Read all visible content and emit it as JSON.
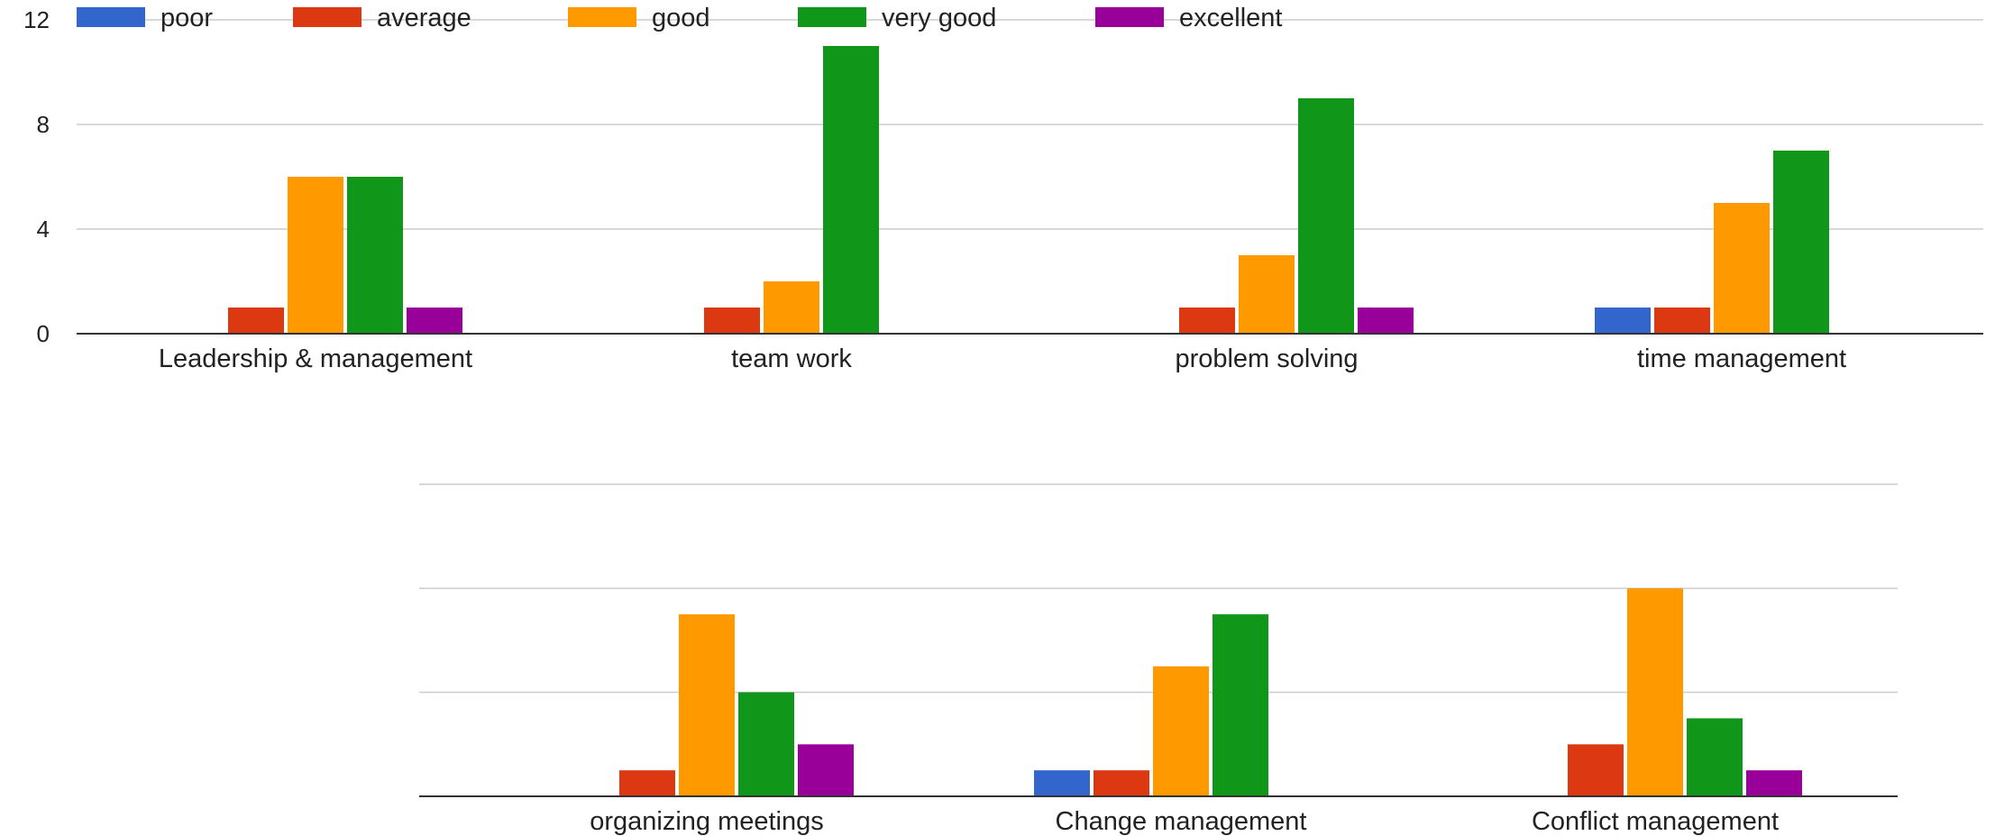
{
  "chart_data": [
    {
      "type": "bar",
      "categories": [
        "Leadership & management",
        "team work",
        "problem solving",
        "time management"
      ],
      "series": [
        {
          "name": "poor",
          "color": "#3366cc",
          "values": [
            0,
            0,
            0,
            1
          ]
        },
        {
          "name": "average",
          "color": "#dc3912",
          "values": [
            1,
            1,
            1,
            1
          ]
        },
        {
          "name": "good",
          "color": "#ff9900",
          "values": [
            6,
            2,
            3,
            5
          ]
        },
        {
          "name": "very good",
          "color": "#109618",
          "values": [
            6,
            11,
            9,
            7
          ]
        },
        {
          "name": "excellent",
          "color": "#990099",
          "values": [
            1,
            0,
            1,
            0
          ]
        }
      ],
      "yticks": [
        "0",
        "4",
        "8",
        "12"
      ],
      "ylim": [
        0,
        12
      ],
      "grid": true,
      "legend": "top-left"
    },
    {
      "type": "bar",
      "categories": [
        "organizing meetings",
        "Change management",
        "Conflict management"
      ],
      "series": [
        {
          "name": "poor",
          "color": "#3366cc",
          "values": [
            0,
            1,
            0
          ]
        },
        {
          "name": "average",
          "color": "#dc3912",
          "values": [
            1,
            1,
            2
          ]
        },
        {
          "name": "good",
          "color": "#ff9900",
          "values": [
            7,
            5,
            8
          ]
        },
        {
          "name": "very good",
          "color": "#109618",
          "values": [
            4,
            7,
            3
          ]
        },
        {
          "name": "excellent",
          "color": "#990099",
          "values": [
            2,
            0,
            1
          ]
        }
      ],
      "ylim": [
        0,
        12
      ],
      "grid": true,
      "legend": "none"
    }
  ]
}
